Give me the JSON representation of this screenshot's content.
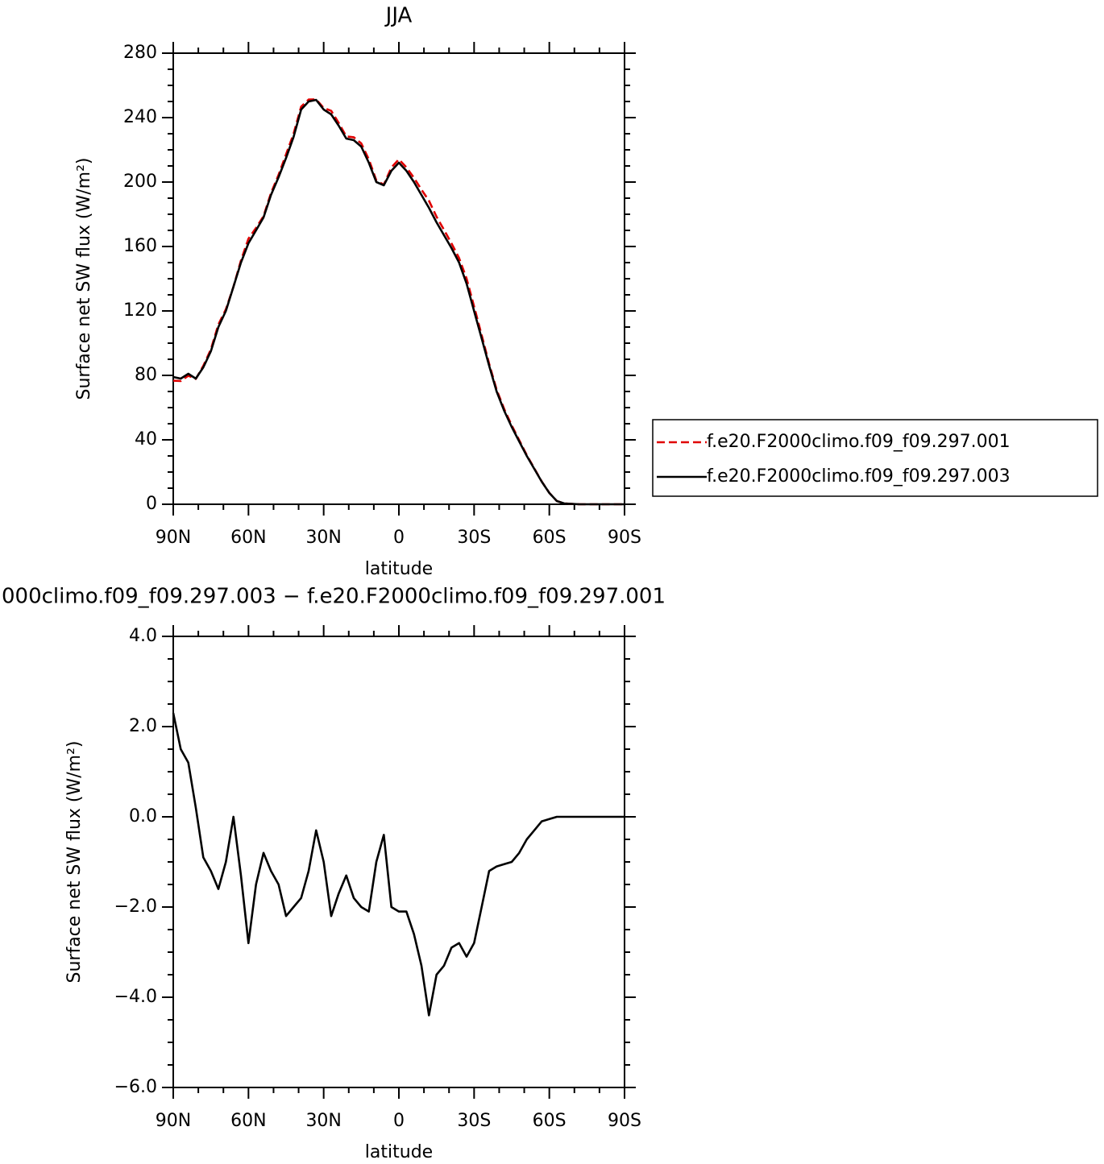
{
  "chart_data": [
    {
      "type": "line",
      "title": "JJA",
      "xlabel": "latitude",
      "ylabel": "Surface net SW flux (W/m²)",
      "x": [
        90,
        87,
        84,
        81,
        78,
        75,
        72,
        69,
        66,
        63,
        60,
        57,
        54,
        51,
        48,
        45,
        42,
        39,
        36,
        33,
        30,
        27,
        24,
        21,
        18,
        15,
        12,
        9,
        6,
        3,
        0,
        -3,
        -6,
        -9,
        -12,
        -15,
        -18,
        -21,
        -24,
        -27,
        -30,
        -33,
        -36,
        -39,
        -42,
        -45,
        -48,
        -51,
        -54,
        -57,
        -60,
        -63,
        -66,
        -69,
        -72,
        -75,
        -78,
        -81,
        -84,
        -87,
        -90
      ],
      "series": [
        {
          "name": "f.e20.F2000climo.f09_f09.297.001",
          "color": "#e00000",
          "dash": true,
          "values": [
            76.7,
            76.5,
            79.8,
            77.8,
            85.9,
            96.2,
            111.6,
            121,
            135,
            151.3,
            164.8,
            171.5,
            178.8,
            193.2,
            204.5,
            217.2,
            230,
            246.8,
            251.2,
            251.3,
            246,
            244.2,
            236.7,
            228.3,
            227.8,
            224,
            214.1,
            201,
            198.4,
            209,
            214.1,
            209.1,
            202.6,
            195.3,
            188.4,
            178.5,
            170.3,
            161.9,
            152.8,
            140.1,
            122.8,
            105,
            87.2,
            71.1,
            59.05,
            49,
            39.8,
            30.5,
            22.3,
            14.1,
            7.05,
            2,
            0.5,
            0.2,
            0,
            0,
            0,
            0,
            0,
            0,
            0
          ]
        },
        {
          "name": "f.e20.F2000climo.f09_f09.297.003",
          "color": "#000000",
          "dash": false,
          "values": [
            79,
            78,
            81,
            78,
            85,
            95,
            110,
            120,
            135,
            150,
            162,
            170,
            178,
            192,
            203,
            215,
            228,
            245,
            250,
            251,
            245,
            242,
            235,
            227,
            226,
            222,
            212,
            200,
            198,
            207,
            212,
            207,
            200,
            192,
            184,
            175,
            167,
            159,
            150,
            137,
            120,
            103,
            86,
            70,
            58,
            48,
            39,
            30,
            22,
            14,
            7,
            2,
            0.5,
            0.2,
            0,
            0,
            0,
            0,
            0,
            0,
            0
          ]
        }
      ],
      "xlim": [
        90,
        -90
      ],
      "xticks": [
        {
          "value": 90,
          "label": "90N"
        },
        {
          "value": 60,
          "label": "60N"
        },
        {
          "value": 30,
          "label": "30N"
        },
        0,
        {
          "value": -30,
          "label": "30S"
        },
        {
          "value": -60,
          "label": "60S"
        },
        {
          "value": -90,
          "label": "90S"
        }
      ],
      "ylim": [
        0,
        280
      ],
      "yticks": [
        0,
        40,
        80,
        120,
        160,
        200,
        240,
        280
      ],
      "legend": "right"
    },
    {
      "type": "line",
      "title": "000climo.f09_f09.297.003 − f.e20.F2000climo.f09_f09.297.001",
      "xlabel": "latitude",
      "ylabel": "Surface net SW flux (W/m²)",
      "x": [
        90,
        87,
        84,
        81,
        78,
        75,
        72,
        69,
        66,
        63,
        60,
        57,
        54,
        51,
        48,
        45,
        42,
        39,
        36,
        33,
        30,
        27,
        24,
        21,
        18,
        15,
        12,
        9,
        6,
        3,
        0,
        -3,
        -6,
        -9,
        -12,
        -15,
        -18,
        -21,
        -24,
        -27,
        -30,
        -33,
        -36,
        -39,
        -42,
        -45,
        -48,
        -51,
        -54,
        -57,
        -60,
        -63,
        -66,
        -69,
        -72,
        -75,
        -78,
        -81,
        -84,
        -87,
        -90
      ],
      "values": [
        2.3,
        1.5,
        1.2,
        0.2,
        -0.9,
        -1.2,
        -1.6,
        -1.0,
        0.0,
        -1.3,
        -2.8,
        -1.5,
        -0.8,
        -1.2,
        -1.5,
        -2.2,
        -2.0,
        -1.8,
        -1.2,
        -0.3,
        -1.0,
        -2.2,
        -1.7,
        -1.3,
        -1.8,
        -2.0,
        -2.1,
        -1.0,
        -0.4,
        -2.0,
        -2.1,
        -2.1,
        -2.6,
        -3.3,
        -4.4,
        -3.5,
        -3.3,
        -2.9,
        -2.8,
        -3.1,
        -2.8,
        -2.0,
        -1.2,
        -1.1,
        -1.05,
        -1.0,
        -0.8,
        -0.5,
        -0.3,
        -0.1,
        -0.05,
        0,
        0,
        0,
        0,
        0,
        0,
        0,
        0,
        0,
        0
      ],
      "color": "#000000",
      "xlim": [
        90,
        -90
      ],
      "xticks": [
        {
          "value": 90,
          "label": "90N"
        },
        {
          "value": 60,
          "label": "60N"
        },
        {
          "value": 30,
          "label": "30N"
        },
        0,
        {
          "value": -30,
          "label": "30S"
        },
        {
          "value": -60,
          "label": "60S"
        },
        {
          "value": -90,
          "label": "90S"
        }
      ],
      "ylim": [
        -6,
        4
      ],
      "yticks": [
        {
          "value": -6,
          "label": "−6.0"
        },
        {
          "value": -4,
          "label": "−4.0"
        },
        {
          "value": -2,
          "label": "−2.0"
        },
        {
          "value": 0,
          "label": "0.0"
        },
        {
          "value": 2,
          "label": "2.0"
        },
        {
          "value": 4,
          "label": "4.0"
        }
      ]
    }
  ]
}
